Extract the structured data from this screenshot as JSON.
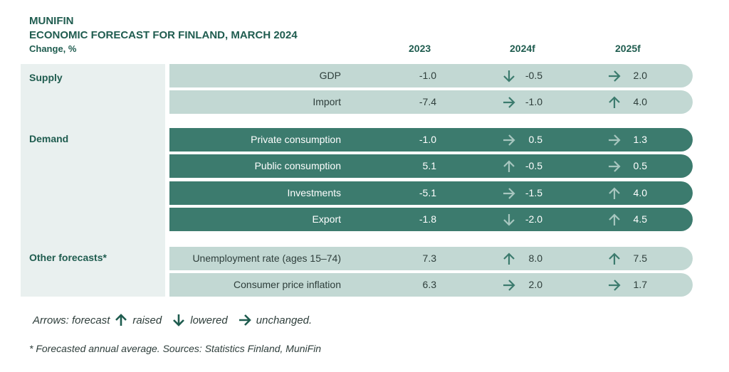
{
  "header": {
    "brand": "MUNIFIN",
    "title": "ECONOMIC FORECAST FOR FINLAND, MARCH 2024",
    "unit": "Change, %"
  },
  "columns": [
    "2023",
    "2024f",
    "2025f"
  ],
  "colors": {
    "heading": "#1f5c4f",
    "light_row": "#c2d8d3",
    "dark_row": "#3c7b6e",
    "panel": "#e9f0ef",
    "arrow_dark": "#3c7b6e",
    "arrow_light": "#a7c6bf"
  },
  "chart_data": {
    "type": "table",
    "title": "ECONOMIC FORECAST FOR FINLAND, MARCH 2024",
    "subtitle": "Change, %",
    "columns": [
      "2023",
      "2024f",
      "2025f"
    ],
    "sections": [
      {
        "name": "Supply",
        "style": "light",
        "rows": [
          {
            "label": "GDP",
            "v2023": "-1.0",
            "v2024": "-0.5",
            "a2024": "down",
            "v2025": "2.0",
            "a2025": "right"
          },
          {
            "label": "Import",
            "v2023": "-7.4",
            "v2024": "-1.0",
            "a2024": "right",
            "v2025": "4.0",
            "a2025": "up"
          }
        ]
      },
      {
        "name": "Demand",
        "style": "dark",
        "rows": [
          {
            "label": "Private consumption",
            "v2023": "-1.0",
            "v2024": "0.5",
            "a2024": "right",
            "v2025": "1.3",
            "a2025": "right"
          },
          {
            "label": "Public consumption",
            "v2023": "5.1",
            "v2024": "-0.5",
            "a2024": "up",
            "v2025": "0.5",
            "a2025": "right"
          },
          {
            "label": "Investments",
            "v2023": "-5.1",
            "v2024": "-1.5",
            "a2024": "right",
            "v2025": "4.0",
            "a2025": "up"
          },
          {
            "label": "Export",
            "v2023": "-1.8",
            "v2024": "-2.0",
            "a2024": "down",
            "v2025": "4.5",
            "a2025": "up"
          }
        ]
      },
      {
        "name": "Other forecasts*",
        "style": "light",
        "rows": [
          {
            "label": "Unemployment rate (ages 15–74)",
            "v2023": "7.3",
            "v2024": "8.0",
            "a2024": "up",
            "v2025": "7.5",
            "a2025": "up"
          },
          {
            "label": "Consumer price inflation",
            "v2023": "6.3",
            "v2024": "2.0",
            "a2024": "right",
            "v2025": "1.7",
            "a2025": "right"
          }
        ]
      }
    ]
  },
  "legend": {
    "prefix": "Arrows: forecast",
    "raised": "raised",
    "lowered": "lowered",
    "unchanged": "unchanged."
  },
  "footnote": "* Forecasted annual average. Sources: Statistics Finland, MuniFin"
}
